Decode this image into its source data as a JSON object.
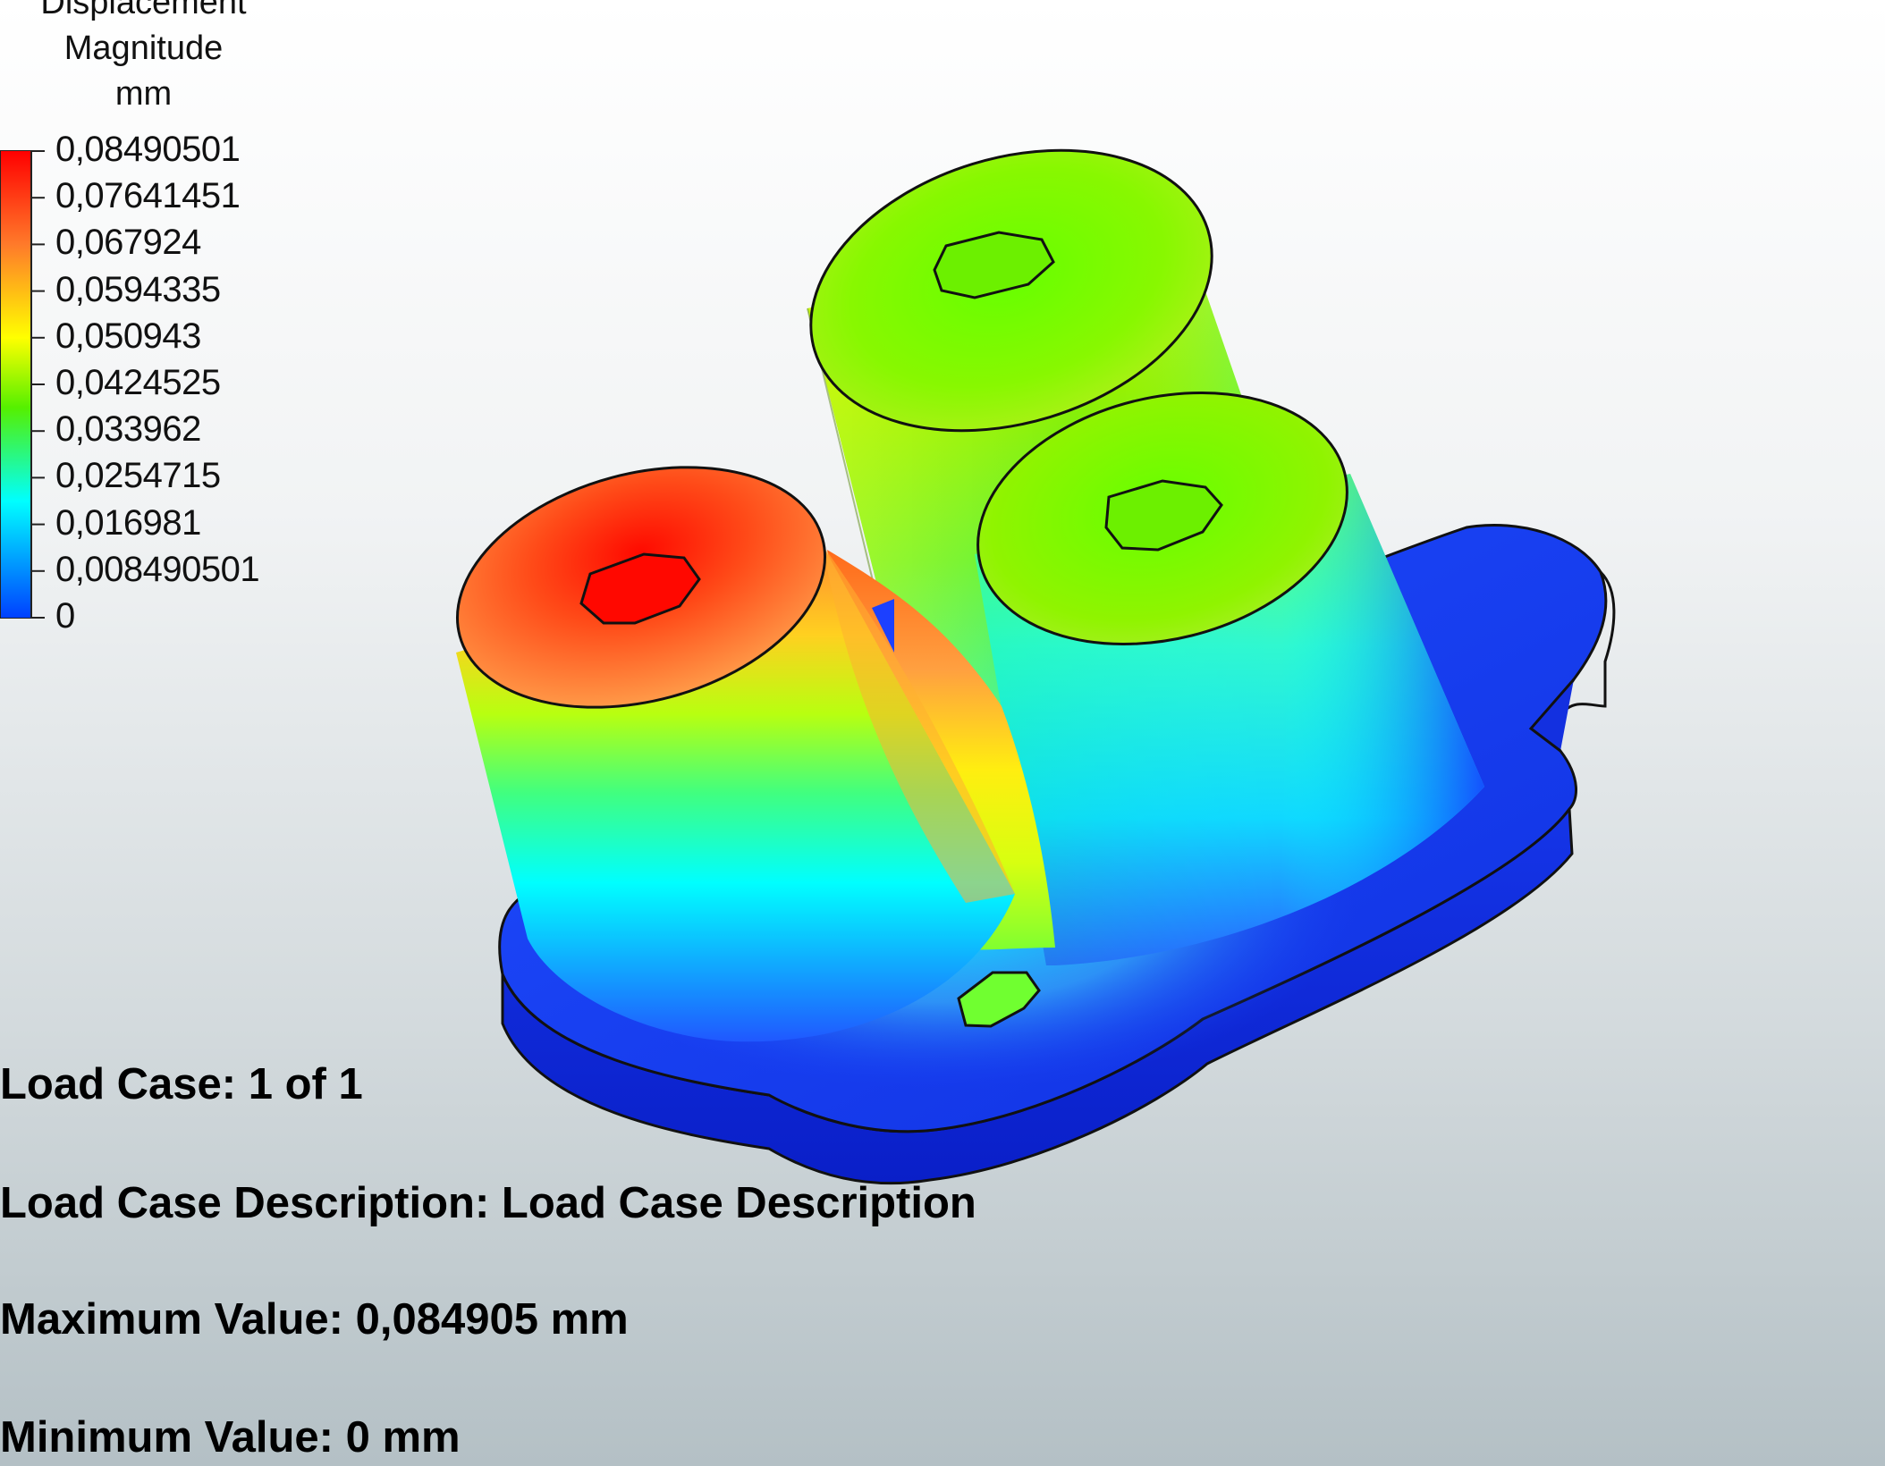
{
  "legend": {
    "title_line1": "Displacement",
    "title_line2": "Magnitude",
    "unit": "mm",
    "labels": [
      "0,08490501",
      "0,07641451",
      "0,067924",
      "0,0594335",
      "0,050943",
      "0,0424525",
      "0,033962",
      "0,0254715",
      "0,016981",
      "0,008490501",
      "0"
    ],
    "colors": {
      "max": "#ff0000",
      "mid_high": "#ffff00",
      "mid": "#55f000",
      "mid_low": "#00ffff",
      "min": "#0040ff"
    }
  },
  "info": {
    "load_case": "Load Case:  1 of 1",
    "load_case_description": "Load Case Description:  Load Case Description",
    "maximum_value": "Maximum Value: 0,084905 mm",
    "minimum_value": "Minimum Value: 0 mm"
  }
}
